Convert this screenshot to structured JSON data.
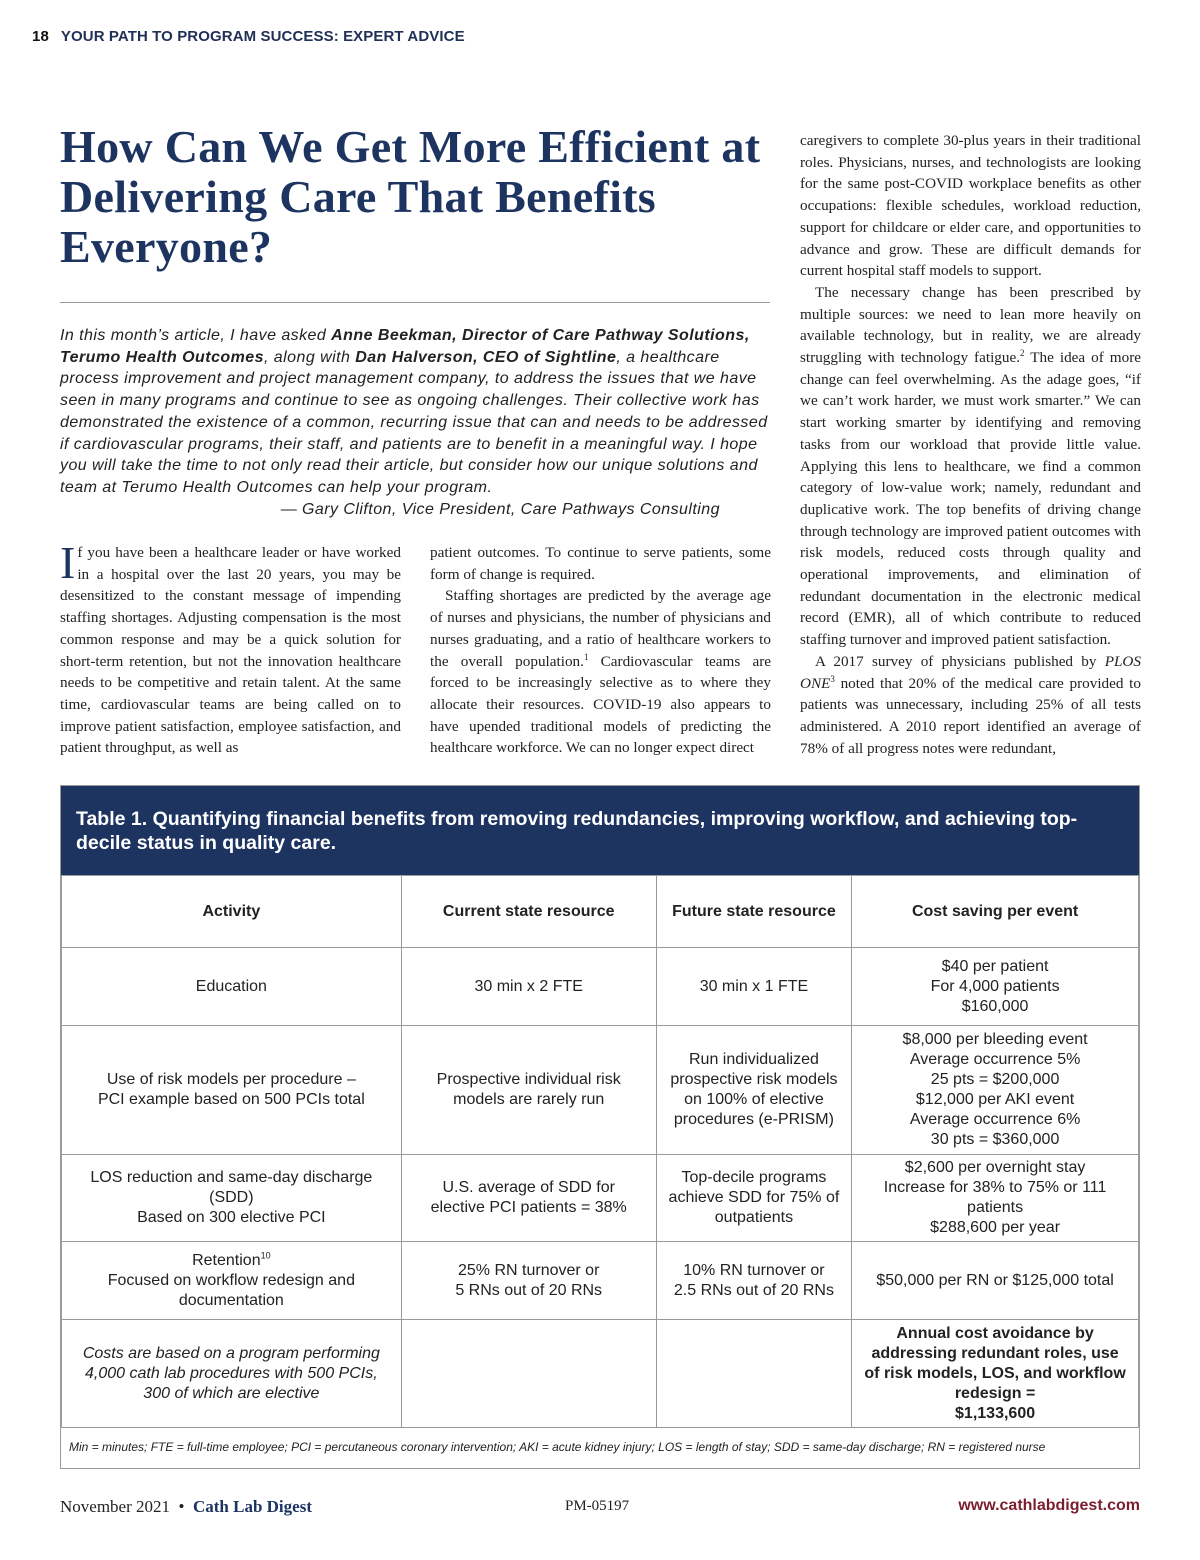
{
  "running_head": {
    "page_number": "18",
    "section": "YOUR PATH TO PROGRAM SUCCESS: EXPERT ADVICE"
  },
  "title": "How Can We Get More Efficient at Delivering Care That Benefits Everyone?",
  "intro": {
    "s1": "In this month’s article, I have asked ",
    "b1": "Anne Beekman, Director of Care Pathway Solutions, Terumo Health Outcomes",
    "s2": ", along with ",
    "b2": "Dan Halverson, CEO of Sightline",
    "s3": ", a healthcare process improvement and project management company, to address the issues that we have seen in many programs and continue to see as ongoing challenges. Their collective work has demonstrated the existence of a common, recurring issue that can and needs to be addressed if cardiovascular programs, their staff, and patients are to benefit in a meaningful way. I hope you will take the time to not only read their article, but consider how our unique solutions and team at Terumo Health Outcomes can help your program.",
    "signature": "— Gary Clifton, Vice President, Care Pathways Consulting"
  },
  "body": {
    "col1": {
      "dropcap": "I",
      "p1": "f you have been a healthcare leader or have worked in a hospital over the last 20 years, you may be desensitized to the constant message of impending staffing shortages. Adjusting compensation is the most common response and may be a quick solution for short-term retention, but not the innovation healthcare needs to be competitive and retain talent. At the same time, cardiovascular teams are being called on to improve patient satisfaction, employee satisfaction, and patient throughput, as well as"
    },
    "col2": {
      "p1": "patient outcomes. To continue to serve patients, some form of change is required.",
      "p2a": "Staffing shortages are predicted by the average age of nurses and physicians, the number of physicians and nurses graduating, and a ratio of healthcare workers to the overall population.",
      "p2_ref": "1",
      "p2b": " Cardiovascular teams are forced to be increasingly selective as to where they allocate their resources. COVID-19 also appears to have upended traditional models of predicting the healthcare workforce. We can no longer expect direct"
    },
    "col3": {
      "p1": "caregivers to complete 30-plus years in their traditional roles. Physicians, nurses, and technologists are looking for the same post-COVID workplace benefits as other occupations: flexible schedules, workload reduction, support for childcare or elder care, and opportunities to advance and grow. These are difficult demands for current hospital staff models to support.",
      "p2a": "The necessary change has been prescribed by multiple sources: we need to lean more heavily on available technology, but in reality, we are already struggling with technology fatigue.",
      "p2_ref": "2",
      "p2b": " The idea of more change can feel overwhelming. As the adage goes, “if we can’t work harder, we must work smarter.” We can start working smarter by identifying and removing tasks from our workload that provide little value. Applying this lens to healthcare, we find a common category of low-value work; namely, redundant and duplicative work. The top benefits of driving change through technology are improved patient outcomes with risk models, reduced costs through quality and operational improvements, and elimination of redundant documentation in the electronic medical record (EMR), all of which contribute to reduced staffing turnover and improved patient satisfaction.",
      "p3a": "A 2017 survey of physicians published by ",
      "p3_journal": "PLOS ONE",
      "p3_ref": "3",
      "p3b": " noted that 20% of the medical care provided to patients was unnecessary, including 25% of all tests administered. A 2010 report identified an average of 78% of all progress notes were redundant,"
    }
  },
  "table": {
    "caption": "Table 1. Quantifying financial benefits from removing redundancies, improving workflow, and achieving top-decile status in quality care.",
    "headers": [
      "Activity",
      "Current state resource",
      "Future state resource",
      "Cost saving per event"
    ],
    "rows": [
      [
        "Education",
        "30 min x 2 FTE",
        "30 min x 1 FTE",
        "$40 per patient\nFor 4,000 patients\n$160,000"
      ],
      [
        "Use of risk models per procedure –\nPCI example based on 500 PCIs total",
        "Prospective individual risk\nmodels are rarely run",
        "Run individualized\nprospective risk models\non 100% of elective\nprocedures (e-PRISM)",
        "$8,000 per bleeding event\nAverage occurrence 5%\n25 pts = $200,000\n$12,000 per AKI event\nAverage occurrence 6%\n30 pts = $360,000"
      ],
      [
        "LOS reduction and same-day discharge (SDD)\nBased on 300 elective PCI",
        "U.S. average of SDD for\nelective PCI patients = 38%",
        "Top-decile programs\nachieve SDD for 75% of\noutpatients",
        "$2,600 per overnight stay\nIncrease for 38% to 75% or 111\npatients\n$288,600 per year"
      ],
      [
        "Retention",
        "25% RN turnover or\n5 RNs out of 20 RNs",
        "10% RN turnover or\n2.5 RNs out of 20 RNs",
        "$50,000 per RN or $125,000 total"
      ]
    ],
    "retention_ref": "10",
    "retention_sub": "Focused on workflow redesign and documentation",
    "summary_note": "Costs are based on a program performing\n4,000 cath lab procedures with 500 PCIs,\n300 of which are elective",
    "summary_total": "Annual cost avoidance by\naddressing redundant roles, use\nof risk models, LOS, and workflow\nredesign =\n$1,133,600",
    "footnote": "Min = minutes; FTE = full-time employee; PCI = percutaneous coronary intervention; AKI = acute kidney injury; LOS = length of stay; SDD = same-day discharge; RN = registered nurse"
  },
  "footer": {
    "date": "November 2021",
    "separator": "•",
    "magazine": "Cath Lab Digest",
    "code": "PM-05197",
    "url": "www.cathlabdigest.com"
  }
}
